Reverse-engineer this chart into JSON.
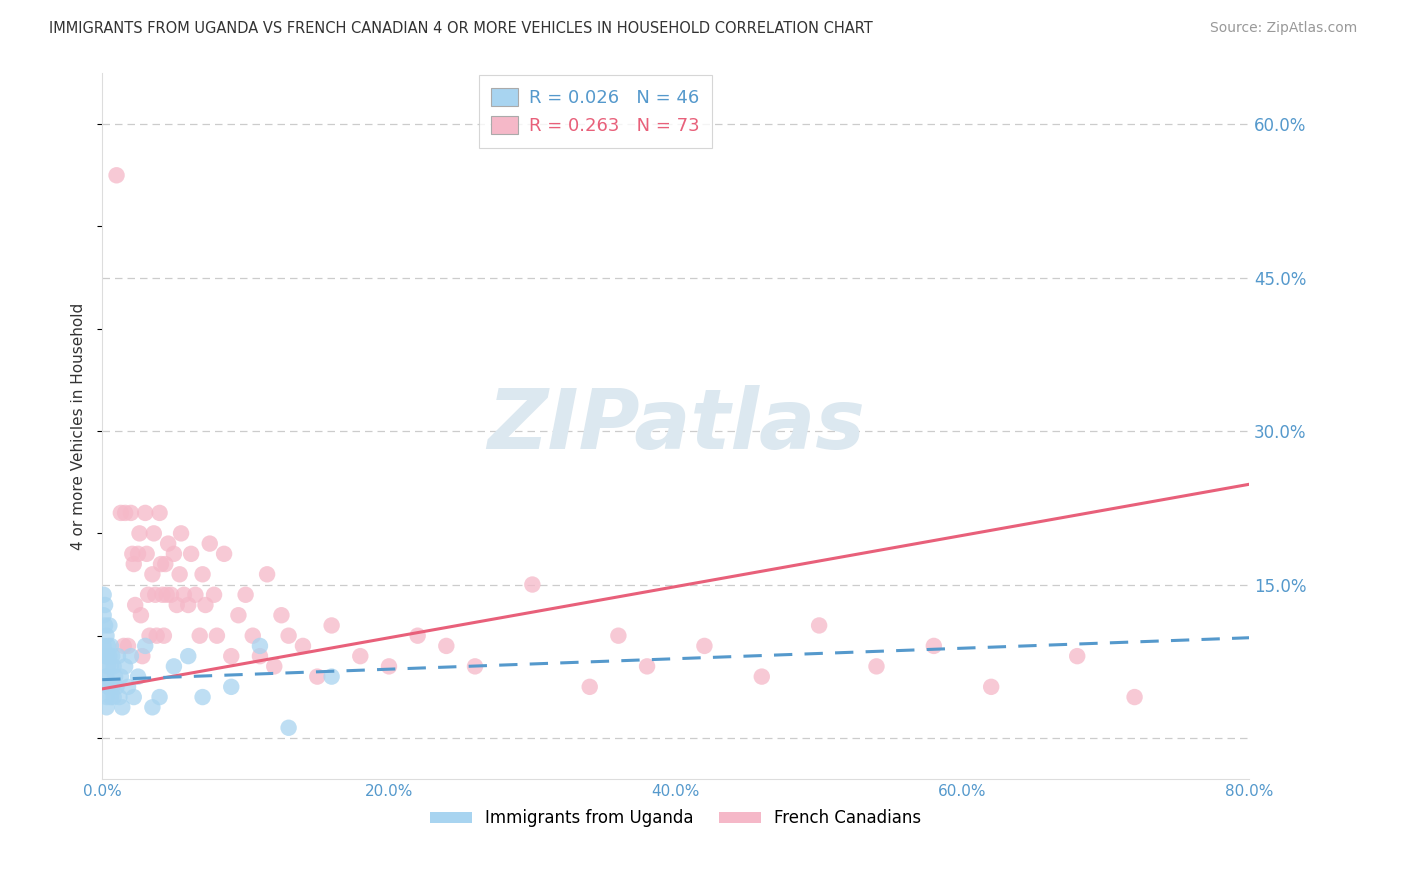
{
  "title": "IMMIGRANTS FROM UGANDA VS FRENCH CANADIAN 4 OR MORE VEHICLES IN HOUSEHOLD CORRELATION CHART",
  "source": "Source: ZipAtlas.com",
  "ylabel": "4 or more Vehicles in Household",
  "xlim": [
    0.0,
    0.8
  ],
  "ylim": [
    -0.04,
    0.65
  ],
  "yticks": [
    0.0,
    0.15,
    0.3,
    0.45,
    0.6
  ],
  "ytick_labels": [
    "",
    "15.0%",
    "30.0%",
    "45.0%",
    "60.0%"
  ],
  "xticks": [
    0.0,
    0.2,
    0.4,
    0.6,
    0.8
  ],
  "xtick_labels": [
    "0.0%",
    "20.0%",
    "40.0%",
    "60.0%",
    "80.0%"
  ],
  "blue_scatter_x": [
    0.001,
    0.001,
    0.001,
    0.002,
    0.002,
    0.002,
    0.002,
    0.003,
    0.003,
    0.003,
    0.003,
    0.003,
    0.004,
    0.004,
    0.004,
    0.005,
    0.005,
    0.005,
    0.006,
    0.006,
    0.006,
    0.007,
    0.007,
    0.008,
    0.008,
    0.009,
    0.01,
    0.011,
    0.012,
    0.013,
    0.014,
    0.016,
    0.018,
    0.02,
    0.022,
    0.025,
    0.03,
    0.035,
    0.04,
    0.05,
    0.06,
    0.07,
    0.09,
    0.11,
    0.13,
    0.16
  ],
  "blue_scatter_y": [
    0.14,
    0.12,
    0.09,
    0.13,
    0.11,
    0.08,
    0.06,
    0.1,
    0.08,
    0.06,
    0.04,
    0.03,
    0.09,
    0.07,
    0.05,
    0.11,
    0.08,
    0.05,
    0.09,
    0.07,
    0.04,
    0.08,
    0.05,
    0.07,
    0.04,
    0.06,
    0.05,
    0.08,
    0.04,
    0.06,
    0.03,
    0.07,
    0.05,
    0.08,
    0.04,
    0.06,
    0.09,
    0.03,
    0.04,
    0.07,
    0.08,
    0.04,
    0.05,
    0.09,
    0.01,
    0.06
  ],
  "blue_trend_x": [
    0.0,
    0.8
  ],
  "blue_trend_y": [
    0.057,
    0.098
  ],
  "pink_scatter_x": [
    0.01,
    0.013,
    0.015,
    0.016,
    0.018,
    0.02,
    0.021,
    0.022,
    0.023,
    0.025,
    0.026,
    0.027,
    0.028,
    0.03,
    0.031,
    0.032,
    0.033,
    0.035,
    0.036,
    0.037,
    0.038,
    0.04,
    0.041,
    0.042,
    0.043,
    0.044,
    0.045,
    0.046,
    0.048,
    0.05,
    0.052,
    0.054,
    0.055,
    0.057,
    0.06,
    0.062,
    0.065,
    0.068,
    0.07,
    0.072,
    0.075,
    0.078,
    0.08,
    0.085,
    0.09,
    0.095,
    0.1,
    0.105,
    0.11,
    0.115,
    0.12,
    0.125,
    0.13,
    0.14,
    0.15,
    0.16,
    0.18,
    0.2,
    0.22,
    0.24,
    0.26,
    0.3,
    0.34,
    0.36,
    0.38,
    0.42,
    0.46,
    0.5,
    0.54,
    0.58,
    0.62,
    0.68,
    0.72
  ],
  "pink_scatter_y": [
    0.55,
    0.22,
    0.09,
    0.22,
    0.09,
    0.22,
    0.18,
    0.17,
    0.13,
    0.18,
    0.2,
    0.12,
    0.08,
    0.22,
    0.18,
    0.14,
    0.1,
    0.16,
    0.2,
    0.14,
    0.1,
    0.22,
    0.17,
    0.14,
    0.1,
    0.17,
    0.14,
    0.19,
    0.14,
    0.18,
    0.13,
    0.16,
    0.2,
    0.14,
    0.13,
    0.18,
    0.14,
    0.1,
    0.16,
    0.13,
    0.19,
    0.14,
    0.1,
    0.18,
    0.08,
    0.12,
    0.14,
    0.1,
    0.08,
    0.16,
    0.07,
    0.12,
    0.1,
    0.09,
    0.06,
    0.11,
    0.08,
    0.07,
    0.1,
    0.09,
    0.07,
    0.15,
    0.05,
    0.1,
    0.07,
    0.09,
    0.06,
    0.11,
    0.07,
    0.09,
    0.05,
    0.08,
    0.04
  ],
  "pink_trend_x": [
    0.0,
    0.8
  ],
  "pink_trend_y": [
    0.048,
    0.248
  ],
  "blue_name": "Immigrants from Uganda",
  "pink_name": "French Canadians",
  "blue_R": 0.026,
  "blue_N": 46,
  "pink_R": 0.263,
  "pink_N": 73,
  "blue_color": "#a8d4f0",
  "blue_line_color": "#5599cc",
  "pink_color": "#f5b8c8",
  "pink_line_color": "#e8607a",
  "title_color": "#333333",
  "source_color": "#999999",
  "axis_color": "#5599cc",
  "grid_color": "#cccccc",
  "watermark": "ZIPatlas",
  "watermark_color": "#dce8f0",
  "background_color": "#ffffff"
}
